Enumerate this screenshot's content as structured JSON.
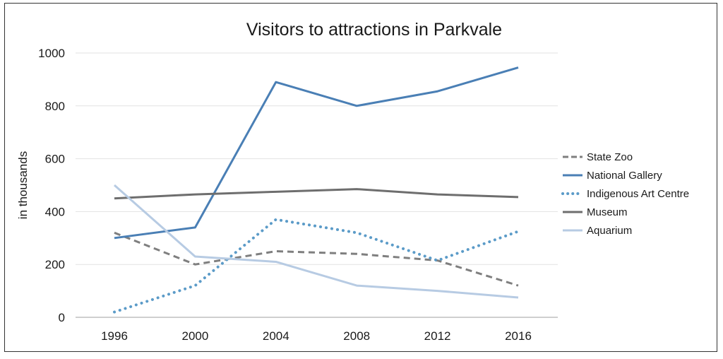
{
  "chart_data": {
    "type": "line",
    "title": "Visitors to attractions in Parkvale",
    "xlabel": "",
    "ylabel": "in thousands",
    "ylim": [
      0,
      1000
    ],
    "yticks": [
      0,
      200,
      400,
      600,
      800,
      1000
    ],
    "grid": true,
    "legend_position": "right",
    "categories": [
      "1996",
      "2000",
      "2004",
      "2008",
      "2012",
      "2016"
    ],
    "series": [
      {
        "name": "State Zoo",
        "color": "#7f7f7f",
        "style": "dashed",
        "values": [
          320,
          200,
          250,
          240,
          215,
          120
        ]
      },
      {
        "name": "National Gallery",
        "color": "#4a7fb5",
        "style": "solid",
        "values": [
          300,
          340,
          890,
          800,
          855,
          945
        ]
      },
      {
        "name": "Indigenous Art Centre",
        "color": "#5b9bc8",
        "style": "dotted",
        "values": [
          20,
          120,
          370,
          320,
          215,
          325
        ]
      },
      {
        "name": "Museum",
        "color": "#6e6e6e",
        "style": "solid",
        "values": [
          450,
          465,
          475,
          485,
          465,
          455
        ]
      },
      {
        "name": "Aquarium",
        "color": "#b7cbe3",
        "style": "solid",
        "values": [
          500,
          230,
          210,
          120,
          100,
          75
        ]
      }
    ]
  }
}
